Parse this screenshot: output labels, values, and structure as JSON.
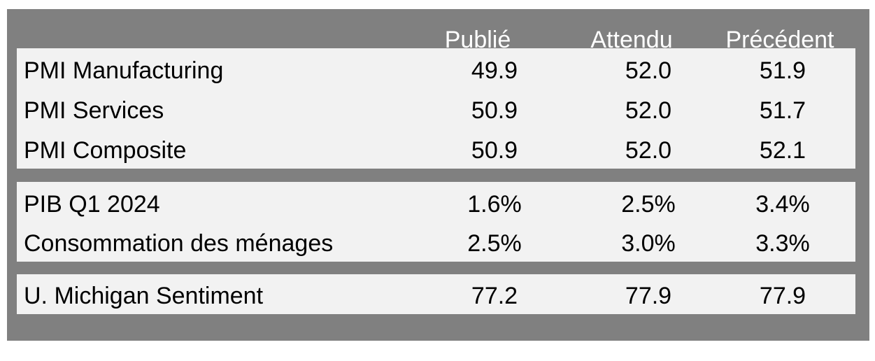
{
  "table": {
    "columns": [
      "Publié",
      "Attendu",
      "Précédent"
    ],
    "groups": [
      {
        "rows": [
          {
            "label": "PMI Manufacturing",
            "values": [
              "49.9",
              "52.0",
              "51.9"
            ]
          },
          {
            "label": "PMI Services",
            "values": [
              "50.9",
              "52.0",
              "51.7"
            ]
          },
          {
            "label": "PMI Composite",
            "values": [
              "50.9",
              "52.0",
              "52.1"
            ]
          }
        ]
      },
      {
        "rows": [
          {
            "label": "PIB Q1 2024",
            "values": [
              "1.6%",
              "2.5%",
              "3.4%"
            ]
          },
          {
            "label": "Consommation des ménages",
            "values": [
              "2.5%",
              "3.0%",
              "3.3%"
            ]
          }
        ]
      },
      {
        "rows": [
          {
            "label": "U. Michigan Sentiment",
            "values": [
              "77.2",
              "77.9",
              "77.9"
            ]
          }
        ]
      }
    ]
  },
  "colors": {
    "frame": "#808080",
    "panel": "#f2f2f2",
    "header_text": "#ffffff",
    "body_text": "#000000"
  }
}
